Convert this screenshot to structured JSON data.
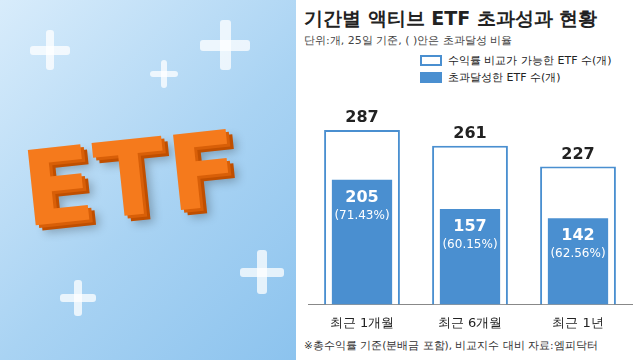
{
  "illustration": {
    "text": "ETF"
  },
  "chart_data": {
    "type": "bar",
    "title": "기간별 액티브 ETF 초과성과 현황",
    "subtitle": "단위:개, 25일 기준, ( )안은 초과달성 비율",
    "categories": [
      "최근 1개월",
      "최근 6개월",
      "최근 1년"
    ],
    "series": [
      {
        "name": "수익률 비교가 가능한 ETF 수(개)",
        "color": "#ffffff",
        "values": [
          287,
          261,
          227
        ]
      },
      {
        "name": "초과달성한 ETF 수(개)",
        "color": "#4a8fd0",
        "values": [
          205,
          157,
          142
        ],
        "value_labels": [
          "205\n(71.43%)",
          "157\n(60.15%)",
          "142\n(62.56%)"
        ]
      }
    ],
    "ylim": [
      0,
      320
    ],
    "grid": false,
    "legend": "top-right",
    "data_labels": true,
    "tick_labels": "x",
    "note": "※총수익률 기준(분배금 포함), 비교지수 대비",
    "source": "자료:엠피닥터"
  }
}
